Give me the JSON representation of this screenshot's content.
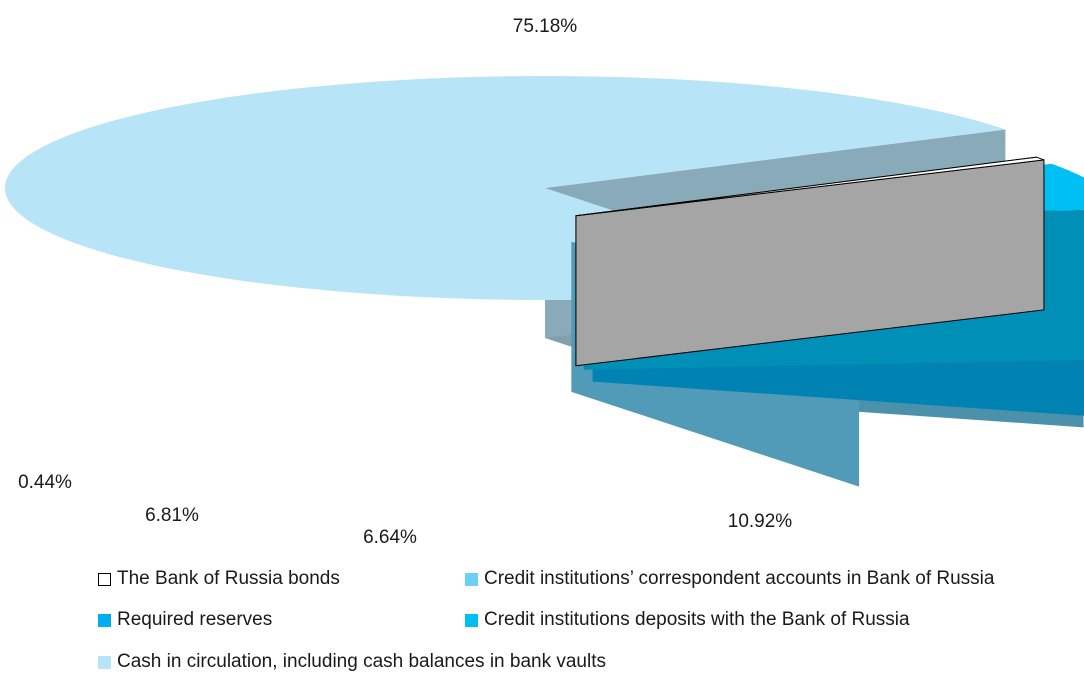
{
  "colors": {
    "bonds": "#ffffff",
    "correspondent": "#6ccff5",
    "required_reserves": "#00aeef",
    "deposits": "#00bff3",
    "cash": "#b7e4f7"
  },
  "chart_data": {
    "type": "pie",
    "style": "3d-exploded",
    "title": "",
    "slices": [
      {
        "label": "Cash in circulation, including cash balances in bank vaults",
        "value": 75.18,
        "value_label": "75.18%",
        "color_key": "cash"
      },
      {
        "label": "Credit institutions’ correspondent accounts in Bank of Russia",
        "value": 10.92,
        "value_label": "10.92%",
        "color_key": "correspondent"
      },
      {
        "label": "Required reserves",
        "value": 6.64,
        "value_label": "6.64%",
        "color_key": "required_reserves"
      },
      {
        "label": "Credit institutions deposits with the Bank of Russia",
        "value": 6.81,
        "value_label": "6.81%",
        "color_key": "deposits"
      },
      {
        "label": "The Bank of Russia  bonds",
        "value": 0.44,
        "value_label": "0.44%",
        "color_key": "bonds"
      }
    ]
  },
  "legend": {
    "items": [
      {
        "label": "The Bank of Russia  bonds",
        "color_key": "bonds"
      },
      {
        "label": "Credit institutions’ correspondent accounts in Bank of Russia",
        "color_key": "correspondent"
      },
      {
        "label": "Required reserves",
        "color_key": "required_reserves"
      },
      {
        "label": "Credit institutions deposits with the Bank of Russia",
        "color_key": "deposits"
      },
      {
        "label": "Cash in circulation, including cash balances in bank vaults",
        "color_key": "cash"
      }
    ]
  }
}
